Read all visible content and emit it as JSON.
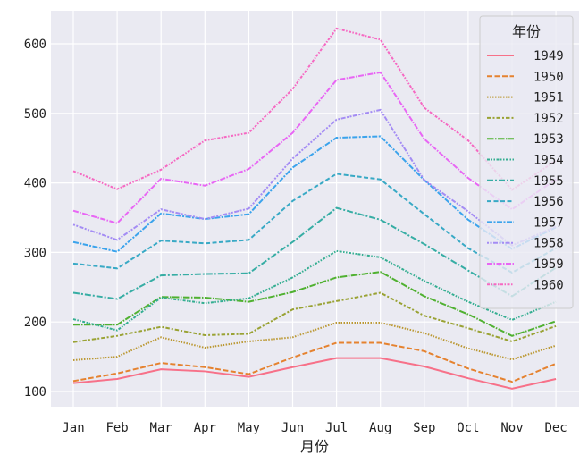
{
  "chart_data": {
    "type": "line",
    "xlabel": "月份",
    "ylabel": "",
    "categories": [
      "Jan",
      "Feb",
      "Mar",
      "Apr",
      "May",
      "Jun",
      "Jul",
      "Aug",
      "Sep",
      "Oct",
      "Nov",
      "Dec"
    ],
    "yticks": [
      100,
      200,
      300,
      400,
      500,
      600
    ],
    "ylim": [
      77,
      640
    ],
    "grid": true,
    "legend": {
      "title": "年份",
      "placement": "top-right"
    },
    "series": [
      {
        "name": "1949",
        "color": "#f77189",
        "dash": "",
        "values": [
          112,
          118,
          132,
          129,
          121,
          135,
          148,
          148,
          136,
          119,
          104,
          118
        ]
      },
      {
        "name": "1950",
        "color": "#e5822f",
        "dash": "6 2.5",
        "values": [
          115,
          126,
          141,
          135,
          125,
          149,
          170,
          170,
          158,
          133,
          114,
          140
        ]
      },
      {
        "name": "1951",
        "color": "#bb9832",
        "dash": "1.5 1.5",
        "values": [
          145,
          150,
          178,
          163,
          172,
          178,
          199,
          199,
          184,
          162,
          146,
          166
        ]
      },
      {
        "name": "1952",
        "color": "#99a233",
        "dash": "4.5 2 2 2",
        "values": [
          171,
          180,
          193,
          181,
          183,
          218,
          230,
          242,
          209,
          191,
          172,
          194
        ]
      },
      {
        "name": "1953",
        "color": "#50b131",
        "dash": "7.5 1.5 1.5 1.5",
        "values": [
          196,
          196,
          236,
          235,
          229,
          243,
          264,
          272,
          237,
          211,
          180,
          201
        ]
      },
      {
        "name": "1954",
        "color": "#34ae91",
        "dash": "3 1.5 1.5 1.5 1.5 1.5",
        "values": [
          204,
          188,
          235,
          227,
          234,
          264,
          302,
          293,
          259,
          229,
          203,
          229
        ]
      },
      {
        "name": "1955",
        "color": "#36ada4",
        "dash": "7 2 2 2",
        "values": [
          242,
          233,
          267,
          269,
          270,
          315,
          364,
          347,
          312,
          274,
          237,
          278
        ]
      },
      {
        "name": "1956",
        "color": "#38a9c5",
        "dash": "5 2.5",
        "values": [
          284,
          277,
          317,
          313,
          318,
          374,
          413,
          405,
          355,
          306,
          271,
          306
        ]
      },
      {
        "name": "1957",
        "color": "#3ba3ec",
        "dash": "6 1.5 2 1.5",
        "values": [
          315,
          301,
          356,
          348,
          355,
          422,
          465,
          467,
          404,
          347,
          305,
          336
        ]
      },
      {
        "name": "1958",
        "color": "#a48cf4",
        "dash": "2 1.5 2 1.5 5 1.5",
        "values": [
          340,
          318,
          362,
          348,
          363,
          435,
          491,
          505,
          404,
          359,
          310,
          337
        ]
      },
      {
        "name": "1959",
        "color": "#e866f4",
        "dash": "6 1.5 1.5 1.5",
        "values": [
          360,
          342,
          406,
          396,
          420,
          472,
          548,
          559,
          463,
          407,
          362,
          405
        ]
      },
      {
        "name": "1960",
        "color": "#f668c2",
        "dash": "3 1.5 1.5 1.5",
        "values": [
          417,
          391,
          419,
          461,
          472,
          535,
          622,
          606,
          508,
          461,
          390,
          432
        ]
      }
    ]
  }
}
